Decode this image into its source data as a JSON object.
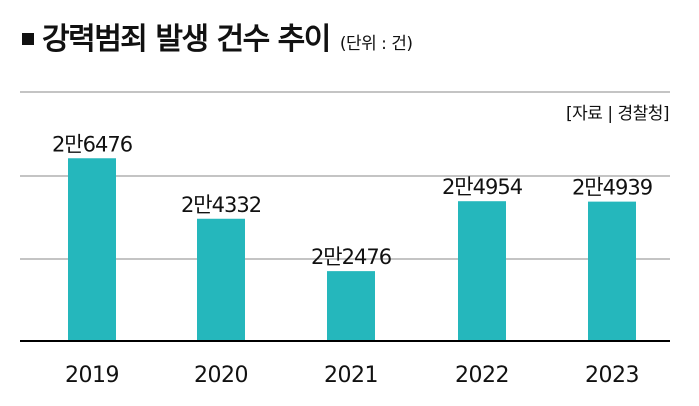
{
  "header": {
    "title": "강력범죄 발생 건수 추이",
    "unit": "(단위 : 건)"
  },
  "source": "[자료 | 경찰청]",
  "colors": {
    "bar": "#25b7bc",
    "gridline": "#888888",
    "baseline": "#000000",
    "text": "#111111"
  },
  "chart_data": {
    "type": "bar",
    "title": "강력범죄 발생 건수 추이",
    "xlabel": "",
    "ylabel": "",
    "categories": [
      "2019",
      "2020",
      "2021",
      "2022",
      "2023"
    ],
    "values": [
      26476,
      24332,
      22476,
      24954,
      24939
    ],
    "data_labels": [
      "2만6476",
      "2만4332",
      "2만2476",
      "2만4954",
      "2만4939"
    ],
    "grid": true,
    "legend": "none"
  }
}
